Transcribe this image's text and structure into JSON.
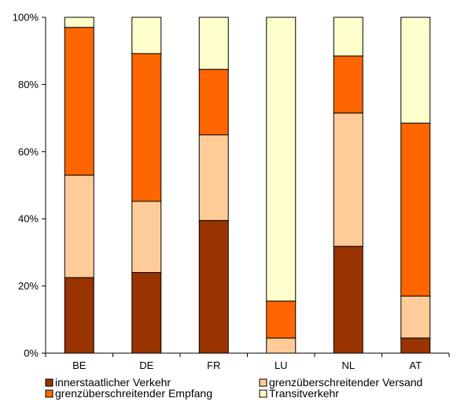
{
  "chart_data": {
    "type": "bar",
    "stacked": true,
    "normalized": true,
    "categories": [
      "BE",
      "DE",
      "FR",
      "LU",
      "NL",
      "AT"
    ],
    "ylim": [
      0,
      100
    ],
    "yticks": [
      "0%",
      "20%",
      "40%",
      "60%",
      "80%",
      "100%"
    ],
    "ytick_values": [
      0,
      20,
      40,
      60,
      80,
      100
    ],
    "grid": false,
    "legend_position": "bottom",
    "series": [
      {
        "name": "innerstaatlicher Verkehr",
        "color": "#993300",
        "values": [
          22.5,
          24.0,
          39.5,
          0.0,
          31.8,
          4.5
        ]
      },
      {
        "name": "grenzüberschreitender Versand",
        "color": "#FFCC99",
        "values": [
          30.5,
          21.2,
          25.5,
          4.5,
          39.7,
          12.5
        ]
      },
      {
        "name": "grenzüberschreitender Empfang",
        "color": "#FF6600",
        "values": [
          44.0,
          44.0,
          19.5,
          11.0,
          17.0,
          51.5
        ]
      },
      {
        "name": "Transitverkehr",
        "color": "#FFFFCC",
        "values": [
          3.0,
          10.8,
          15.5,
          84.5,
          11.5,
          31.5
        ]
      }
    ]
  }
}
